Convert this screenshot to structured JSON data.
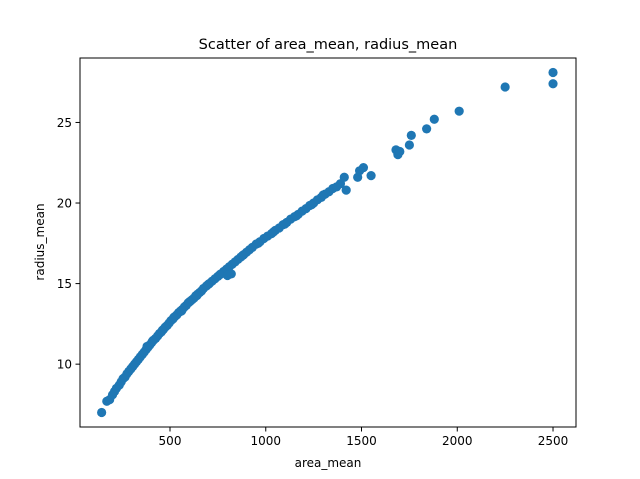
{
  "chart_data": {
    "type": "scatter",
    "title": "Scatter of area_mean, radius_mean",
    "xlabel": "area_mean",
    "ylabel": "radius_mean",
    "xlim": [
      30,
      2620
    ],
    "ylim": [
      6.1,
      29.0
    ],
    "xticks": [
      500,
      1000,
      1500,
      2000,
      2500
    ],
    "yticks": [
      10,
      15,
      20,
      25
    ],
    "grid": false,
    "marker_color": "#1f77b4",
    "series": [
      {
        "name": "radius_mean",
        "points": [
          [
            143,
            7.0
          ],
          [
            170,
            7.7
          ],
          [
            185,
            7.8
          ],
          [
            200,
            8.1
          ],
          [
            210,
            8.3
          ],
          [
            220,
            8.5
          ],
          [
            235,
            8.7
          ],
          [
            245,
            8.9
          ],
          [
            255,
            9.1
          ],
          [
            265,
            9.2
          ],
          [
            275,
            9.4
          ],
          [
            285,
            9.55
          ],
          [
            295,
            9.7
          ],
          [
            305,
            9.85
          ],
          [
            315,
            10.0
          ],
          [
            325,
            10.15
          ],
          [
            335,
            10.3
          ],
          [
            345,
            10.45
          ],
          [
            355,
            10.6
          ],
          [
            365,
            10.75
          ],
          [
            375,
            10.9
          ],
          [
            385,
            11.05
          ],
          [
            395,
            11.2
          ],
          [
            405,
            11.35
          ],
          [
            415,
            11.5
          ],
          [
            425,
            11.6
          ],
          [
            435,
            11.75
          ],
          [
            445,
            11.9
          ],
          [
            455,
            12.0
          ],
          [
            465,
            12.15
          ],
          [
            475,
            12.3
          ],
          [
            485,
            12.4
          ],
          [
            495,
            12.55
          ],
          [
            505,
            12.7
          ],
          [
            515,
            12.8
          ],
          [
            525,
            12.95
          ],
          [
            535,
            13.05
          ],
          [
            545,
            13.2
          ],
          [
            555,
            13.3
          ],
          [
            565,
            13.4
          ],
          [
            575,
            13.55
          ],
          [
            585,
            13.65
          ],
          [
            595,
            13.8
          ],
          [
            605,
            13.9
          ],
          [
            615,
            14.0
          ],
          [
            625,
            14.1
          ],
          [
            635,
            14.25
          ],
          [
            645,
            14.35
          ],
          [
            655,
            14.45
          ],
          [
            665,
            14.55
          ],
          [
            675,
            14.7
          ],
          [
            690,
            14.85
          ],
          [
            705,
            15.0
          ],
          [
            720,
            15.15
          ],
          [
            735,
            15.3
          ],
          [
            750,
            15.45
          ],
          [
            765,
            15.6
          ],
          [
            780,
            15.75
          ],
          [
            795,
            15.9
          ],
          [
            810,
            16.05
          ],
          [
            825,
            16.2
          ],
          [
            840,
            16.35
          ],
          [
            855,
            16.5
          ],
          [
            870,
            16.65
          ],
          [
            885,
            16.8
          ],
          [
            900,
            16.95
          ],
          [
            915,
            17.1
          ],
          [
            930,
            17.25
          ],
          [
            950,
            17.45
          ],
          [
            970,
            17.6
          ],
          [
            990,
            17.8
          ],
          [
            1010,
            17.95
          ],
          [
            1030,
            18.1
          ],
          [
            1050,
            18.3
          ],
          [
            1070,
            18.45
          ],
          [
            1090,
            18.65
          ],
          [
            1110,
            18.8
          ],
          [
            1130,
            19.0
          ],
          [
            1150,
            19.15
          ],
          [
            1170,
            19.3
          ],
          [
            1190,
            19.5
          ],
          [
            1210,
            19.65
          ],
          [
            1230,
            19.85
          ],
          [
            1250,
            20.0
          ],
          [
            1270,
            20.2
          ],
          [
            1290,
            20.35
          ],
          [
            1310,
            20.55
          ],
          [
            1330,
            20.7
          ],
          [
            1350,
            20.9
          ],
          [
            1370,
            21.0
          ],
          [
            1390,
            21.2
          ],
          [
            1410,
            21.6
          ],
          [
            1420,
            20.8
          ],
          [
            1480,
            21.6
          ],
          [
            1490,
            22.0
          ],
          [
            1510,
            22.2
          ],
          [
            1550,
            21.7
          ],
          [
            1680,
            23.3
          ],
          [
            1690,
            23.0
          ],
          [
            1700,
            23.2
          ],
          [
            1750,
            23.6
          ],
          [
            1760,
            24.2
          ],
          [
            1840,
            24.6
          ],
          [
            1880,
            25.2
          ],
          [
            2010,
            25.7
          ],
          [
            2250,
            27.2
          ],
          [
            2500,
            28.1
          ],
          [
            2500,
            27.4
          ],
          [
            380,
            11.1
          ],
          [
            410,
            11.45
          ],
          [
            460,
            12.1
          ],
          [
            520,
            12.9
          ],
          [
            560,
            13.3
          ],
          [
            600,
            13.85
          ],
          [
            640,
            14.25
          ],
          [
            700,
            14.95
          ],
          [
            760,
            15.55
          ],
          [
            800,
            15.5
          ],
          [
            820,
            15.6
          ],
          [
            880,
            16.75
          ],
          [
            960,
            17.5
          ],
          [
            1040,
            18.2
          ],
          [
            1100,
            18.7
          ],
          [
            1160,
            19.2
          ],
          [
            1240,
            19.9
          ],
          [
            1300,
            20.5
          ]
        ]
      }
    ]
  }
}
